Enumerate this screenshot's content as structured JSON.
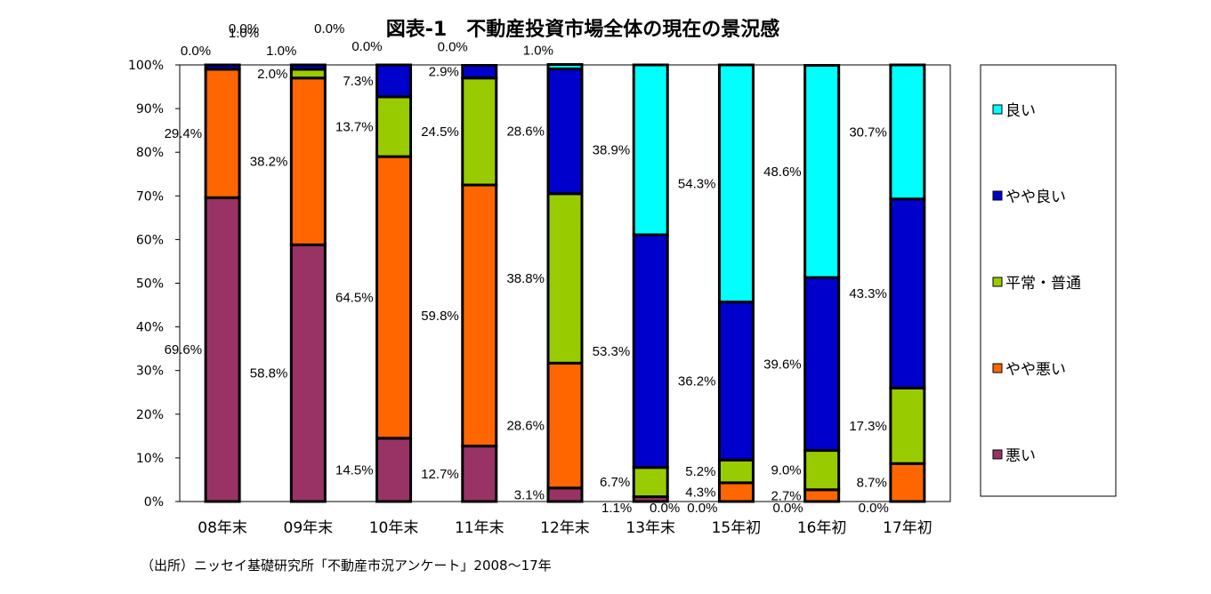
{
  "chart_data": {
    "type": "bar",
    "stacked": true,
    "percent": true,
    "title": "図表-1　不動産投資市場全体の現在の景況感",
    "source": "（出所）ニッセイ基礎研究所「不動産市況アンケート」2008～17年",
    "categories": [
      "08年末",
      "09年末",
      "10年末",
      "11年末",
      "12年末",
      "13年末",
      "15年初",
      "16年初",
      "17年初"
    ],
    "yticks": [
      "0%",
      "10%",
      "20%",
      "30%",
      "40%",
      "50%",
      "60%",
      "70%",
      "80%",
      "90%",
      "100%"
    ],
    "ylim": [
      0,
      100
    ],
    "legend_position": "right",
    "series": [
      {
        "name": "悪い",
        "color": "#993366",
        "values": [
          69.6,
          58.8,
          14.5,
          12.7,
          3.1,
          1.1,
          0.0,
          0.0,
          0.0
        ],
        "labels": [
          "69.6%",
          "58.8%",
          "14.5%",
          "12.7%",
          "3.1%",
          "1.1%",
          "0.0%",
          "0.0%",
          "0.0%"
        ]
      },
      {
        "name": "やや悪い",
        "color": "#ff6600",
        "values": [
          29.4,
          38.2,
          64.5,
          59.8,
          28.6,
          0.0,
          4.3,
          2.7,
          8.7
        ],
        "labels": [
          "29.4%",
          "38.2%",
          "64.5%",
          "59.8%",
          "28.6%",
          "0.0%",
          "4.3%",
          "2.7%",
          "8.7%"
        ]
      },
      {
        "name": "平常・普通",
        "color": "#99cc00",
        "values": [
          0.0,
          2.0,
          13.7,
          24.5,
          38.8,
          6.7,
          5.2,
          9.0,
          17.3
        ],
        "labels": [
          "0.0%",
          "2.0%",
          "13.7%",
          "24.5%",
          "38.8%",
          "6.7%",
          "5.2%",
          "9.0%",
          "17.3%"
        ]
      },
      {
        "name": "やや良い",
        "color": "#0000cc",
        "values": [
          1.0,
          1.0,
          7.3,
          2.9,
          28.6,
          53.3,
          36.2,
          39.6,
          43.3
        ],
        "labels": [
          "1.0%",
          "1.0%",
          "7.3%",
          "2.9%",
          "28.6%",
          "53.3%",
          "36.2%",
          "39.6%",
          "43.3%"
        ]
      },
      {
        "name": "良い",
        "color": "#00ffff",
        "values": [
          0.0,
          0.0,
          0.0,
          0.0,
          1.0,
          38.9,
          54.3,
          48.6,
          30.7
        ],
        "labels": [
          "0.0%",
          "0.0%",
          "0.0%",
          "0.0%",
          "1.0%",
          "38.9%",
          "54.3%",
          "48.6%",
          "30.7%"
        ]
      }
    ]
  }
}
